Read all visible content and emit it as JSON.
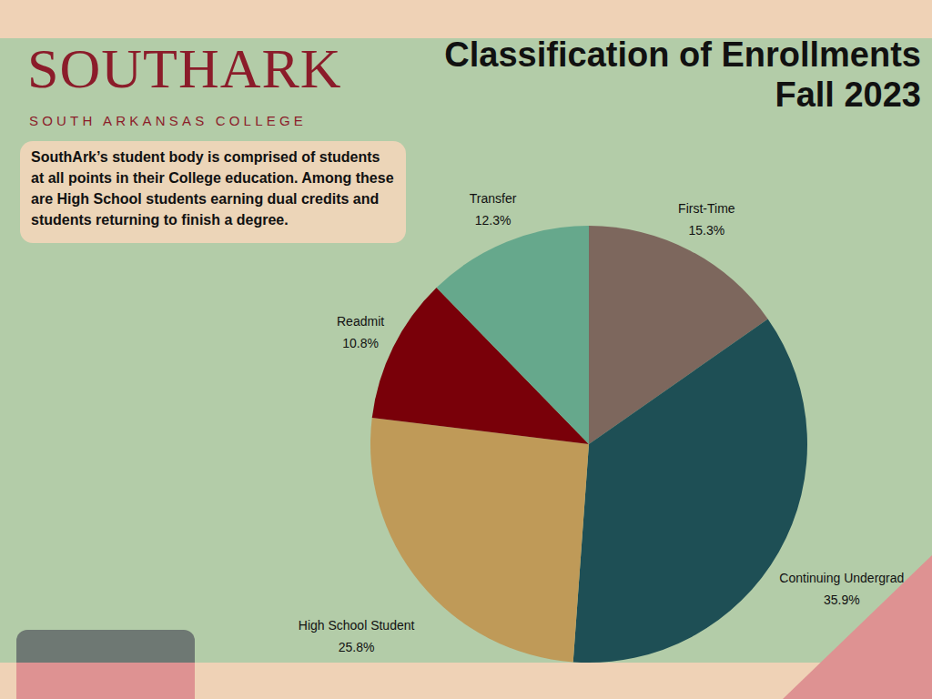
{
  "logo": "SOUTHARK",
  "tagline": "SOUTH ARKANSAS COLLEGE",
  "description": "SouthArk’s student body is comprised of students at all points in their College education. Among these are High School students earning dual credits and students returning to finish a degree.",
  "chart_data": {
    "type": "pie",
    "title": "Classification of Enrollments",
    "subtitle": "Fall 2023",
    "categories": [
      "First-Time",
      "Continuing Undergrad",
      "High School Student",
      "Readmit",
      "Transfer"
    ],
    "values": [
      15.3,
      35.9,
      25.8,
      10.8,
      12.3
    ],
    "value_labels": [
      "15.3%",
      "35.9%",
      "25.8%",
      "10.8%",
      "12.3%"
    ],
    "colors": [
      "#7d675d",
      "#1e4f55",
      "#bf9a58",
      "#790009",
      "#66a88c"
    ],
    "data_labels": true
  }
}
